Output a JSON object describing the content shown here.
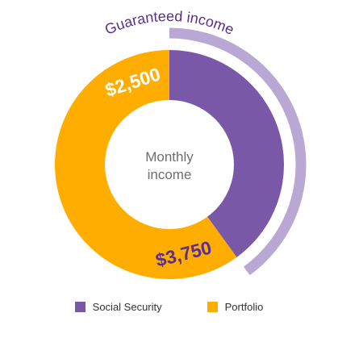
{
  "chart_data": {
    "type": "pie",
    "variant": "donut",
    "categories": [
      "Social Security",
      "Portfolio"
    ],
    "values": [
      2500,
      3750
    ],
    "value_labels": [
      "$2,500",
      "$3,750"
    ],
    "center_label": [
      "Monthly",
      "income"
    ],
    "arc_label": "Guaranteed income",
    "arc_label_applies_to": "Social Security",
    "legend_position": "bottom",
    "colors": {
      "Social Security": "#7a58a8",
      "Portfolio": "#ffad00",
      "guaranteed_arc": "#b9a8d3",
      "social_security_label": "#ffffff",
      "portfolio_label": "#5a2e91",
      "center_text": "#6e6e6e",
      "arc_label_text": "#5a2e91"
    }
  }
}
